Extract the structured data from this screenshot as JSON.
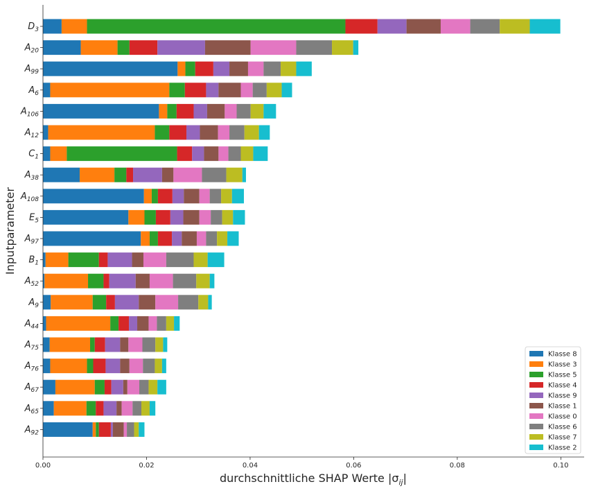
{
  "chart_data": {
    "type": "bar",
    "orientation": "horizontal",
    "stacked": true,
    "xlabel": "durchschnittliche SHAP Werte |σ",
    "xlabel_sub": "ij",
    "xlabel_end": "|",
    "ylabel": "Inputparameter",
    "xlim": [
      0,
      0.1045
    ],
    "x_ticks": [
      0.0,
      0.02,
      0.04,
      0.06,
      0.08,
      0.1
    ],
    "x_tick_labels": [
      "0.00",
      "0.02",
      "0.04",
      "0.06",
      "0.08",
      "0.10"
    ],
    "grid": false,
    "legend_position": "lower-right",
    "categories": [
      {
        "base": "D",
        "sub": "3"
      },
      {
        "base": "A",
        "sub": "20"
      },
      {
        "base": "A",
        "sub": "99"
      },
      {
        "base": "A",
        "sub": "6"
      },
      {
        "base": "A",
        "sub": "106"
      },
      {
        "base": "A",
        "sub": "12"
      },
      {
        "base": "C",
        "sub": "1"
      },
      {
        "base": "A",
        "sub": "38"
      },
      {
        "base": "A",
        "sub": "108"
      },
      {
        "base": "E",
        "sub": "5"
      },
      {
        "base": "A",
        "sub": "97"
      },
      {
        "base": "B",
        "sub": "1"
      },
      {
        "base": "A",
        "sub": "52"
      },
      {
        "base": "A",
        "sub": "9"
      },
      {
        "base": "A",
        "sub": "44"
      },
      {
        "base": "A",
        "sub": "75"
      },
      {
        "base": "A",
        "sub": "76"
      },
      {
        "base": "A",
        "sub": "67"
      },
      {
        "base": "A",
        "sub": "65"
      },
      {
        "base": "A",
        "sub": "92"
      }
    ],
    "series": [
      {
        "name": "Klasse 8",
        "color": "#1f77b4",
        "values": [
          0.0036,
          0.0073,
          0.026,
          0.0014,
          0.0224,
          0.001,
          0.0014,
          0.0071,
          0.0195,
          0.0165,
          0.0189,
          0.0005,
          0.0003,
          0.0015,
          0.0006,
          0.0013,
          0.0014,
          0.0024,
          0.0021,
          0.0096
        ]
      },
      {
        "name": "Klasse 3",
        "color": "#ff7f0e",
        "values": [
          0.0049,
          0.0071,
          0.0015,
          0.023,
          0.0016,
          0.0206,
          0.0032,
          0.0067,
          0.0015,
          0.0031,
          0.0017,
          0.0044,
          0.0084,
          0.0081,
          0.0124,
          0.0078,
          0.0071,
          0.0076,
          0.0063,
          0.0006
        ]
      },
      {
        "name": "Klasse 5",
        "color": "#2ca02c",
        "values": [
          0.0499,
          0.0023,
          0.0019,
          0.003,
          0.0018,
          0.0028,
          0.0213,
          0.0023,
          0.0012,
          0.0022,
          0.0016,
          0.0059,
          0.003,
          0.0026,
          0.0016,
          0.0009,
          0.0012,
          0.0019,
          0.0018,
          0.0006
        ]
      },
      {
        "name": "Klasse 4",
        "color": "#d62728",
        "values": [
          0.0062,
          0.0054,
          0.0035,
          0.0041,
          0.0033,
          0.0033,
          0.0029,
          0.0013,
          0.0028,
          0.0028,
          0.0027,
          0.0017,
          0.0011,
          0.0017,
          0.002,
          0.002,
          0.0024,
          0.0013,
          0.0015,
          0.0023
        ]
      },
      {
        "name": "Klasse 9",
        "color": "#9467bd",
        "values": [
          0.0056,
          0.0092,
          0.0031,
          0.0024,
          0.0026,
          0.0026,
          0.0023,
          0.0056,
          0.0022,
          0.0025,
          0.0019,
          0.0047,
          0.0051,
          0.0046,
          0.0016,
          0.0029,
          0.0028,
          0.0023,
          0.0025,
          0.0004
        ]
      },
      {
        "name": "Klasse 1",
        "color": "#8c564b",
        "values": [
          0.0066,
          0.0088,
          0.0036,
          0.0043,
          0.0034,
          0.0035,
          0.0028,
          0.0022,
          0.003,
          0.0031,
          0.0029,
          0.0022,
          0.0027,
          0.0032,
          0.0022,
          0.0016,
          0.0018,
          0.0008,
          0.001,
          0.0021
        ]
      },
      {
        "name": "Klasse 0",
        "color": "#e377c2",
        "values": [
          0.0057,
          0.0088,
          0.003,
          0.0023,
          0.0023,
          0.0022,
          0.0019,
          0.0055,
          0.002,
          0.0022,
          0.0018,
          0.0044,
          0.0045,
          0.0044,
          0.0016,
          0.0027,
          0.0026,
          0.0023,
          0.0021,
          0.0006
        ]
      },
      {
        "name": "Klasse 6",
        "color": "#7f7f7f",
        "values": [
          0.0057,
          0.0069,
          0.0033,
          0.0027,
          0.0027,
          0.0029,
          0.0024,
          0.0047,
          0.0022,
          0.0022,
          0.0021,
          0.0053,
          0.0045,
          0.0039,
          0.0018,
          0.0025,
          0.0023,
          0.0018,
          0.0017,
          0.0014
        ]
      },
      {
        "name": "Klasse 7",
        "color": "#bcbd22",
        "values": [
          0.0058,
          0.0041,
          0.003,
          0.0029,
          0.0025,
          0.0028,
          0.0024,
          0.0031,
          0.0021,
          0.0021,
          0.002,
          0.0027,
          0.0026,
          0.0019,
          0.0015,
          0.0015,
          0.0014,
          0.0017,
          0.0016,
          0.0009
        ]
      },
      {
        "name": "Klasse 2",
        "color": "#17becf",
        "values": [
          0.0059,
          0.001,
          0.003,
          0.002,
          0.0024,
          0.0021,
          0.0028,
          0.0007,
          0.0023,
          0.0023,
          0.0022,
          0.0032,
          0.0009,
          0.0007,
          0.0011,
          0.0008,
          0.0008,
          0.0017,
          0.0011,
          0.0011
        ]
      }
    ]
  }
}
